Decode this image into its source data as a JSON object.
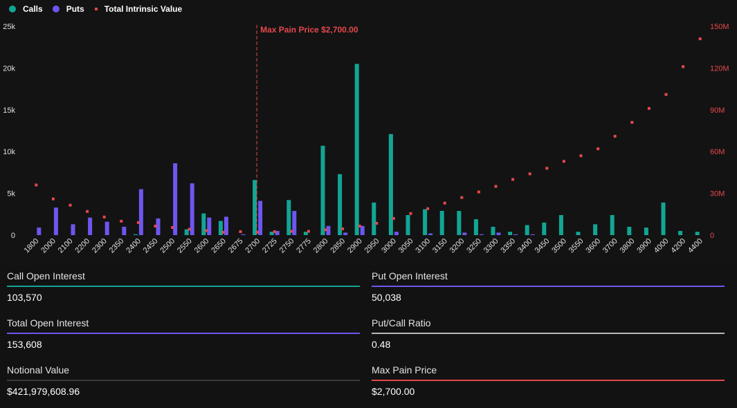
{
  "legend": {
    "calls": "Calls",
    "puts": "Puts",
    "intrinsic": "Total Intrinsic Value"
  },
  "colors": {
    "calls": "#12a594",
    "puts": "#6e56f0",
    "intrinsic": "#e5484d",
    "call_oi_line": "#12a594",
    "put_oi_line": "#6e56f0",
    "total_oi_line": "#6e56f0",
    "ratio_line": "#b8b8b8",
    "notional_line": "#3a3a3a",
    "maxpain_line": "#e5484d"
  },
  "chart_data": {
    "type": "bar",
    "categories": [
      "1800",
      "2000",
      "2100",
      "2200",
      "2300",
      "2350",
      "2400",
      "2450",
      "2500",
      "2550",
      "2600",
      "2650",
      "2675",
      "2700",
      "2725",
      "2750",
      "2775",
      "2800",
      "2850",
      "2900",
      "2950",
      "3000",
      "3050",
      "3100",
      "3150",
      "3200",
      "3250",
      "3300",
      "3350",
      "3400",
      "3450",
      "3500",
      "3550",
      "3600",
      "3700",
      "3800",
      "3900",
      "4000",
      "4200",
      "4400"
    ],
    "series": [
      {
        "name": "Calls",
        "axis": "left",
        "values": [
          0,
          0,
          0,
          0,
          0,
          0,
          100,
          0,
          0,
          700,
          2600,
          1700,
          0,
          6600,
          400,
          4200,
          400,
          10700,
          7300,
          20500,
          3900,
          12100,
          2400,
          3100,
          2900,
          2900,
          1900,
          1000,
          400,
          1200,
          1500,
          2400,
          400,
          1300,
          2400,
          1000,
          900,
          3900,
          500,
          400
        ]
      },
      {
        "name": "Puts",
        "axis": "left",
        "values": [
          900,
          3300,
          1300,
          2100,
          1600,
          1000,
          5500,
          2000,
          8600,
          6200,
          2100,
          2200,
          100,
          4100,
          500,
          2900,
          0,
          1100,
          300,
          1100,
          0,
          400,
          0,
          200,
          0,
          300,
          100,
          300,
          100,
          100,
          0,
          0,
          0,
          0,
          0,
          0,
          0,
          0,
          0,
          0
        ]
      },
      {
        "name": "Total Intrinsic Value",
        "axis": "right",
        "type": "scatter",
        "values": [
          36000000,
          26000000,
          21500000,
          17000000,
          13000000,
          10000000,
          9000000,
          6500000,
          5500000,
          4200000,
          3200000,
          2000000,
          2500000,
          2000000,
          2500000,
          2700000,
          2700000,
          3800000,
          4500000,
          6500000,
          8500000,
          12000000,
          15500000,
          19000000,
          23000000,
          27000000,
          31000000,
          35000000,
          40000000,
          44000000,
          48000000,
          53000000,
          57000000,
          62000000,
          71000000,
          81000000,
          91000000,
          101000000,
          121000000,
          141000000
        ]
      }
    ],
    "y_left": {
      "min": 0,
      "max": 25000,
      "ticks": [
        "0",
        "5k",
        "10k",
        "15k",
        "20k",
        "25k"
      ]
    },
    "y_right": {
      "min": 0,
      "max": 150000000,
      "ticks": [
        "0",
        "30M",
        "60M",
        "90M",
        "120M",
        "150M"
      ]
    },
    "max_pain": {
      "label": "Max Pain Price $2,700.00",
      "category": "2700"
    },
    "grid": false,
    "legend_position": "top-left"
  },
  "stats": {
    "call_oi": {
      "label": "Call Open Interest",
      "value": "103,570"
    },
    "put_oi": {
      "label": "Put Open Interest",
      "value": "50,038"
    },
    "total_oi": {
      "label": "Total Open Interest",
      "value": "153,608"
    },
    "ratio": {
      "label": "Put/Call Ratio",
      "value": "0.48"
    },
    "notional": {
      "label": "Notional Value",
      "value": "$421,979,608.96"
    },
    "max_pain": {
      "label": "Max Pain Price",
      "value": "$2,700.00"
    }
  }
}
